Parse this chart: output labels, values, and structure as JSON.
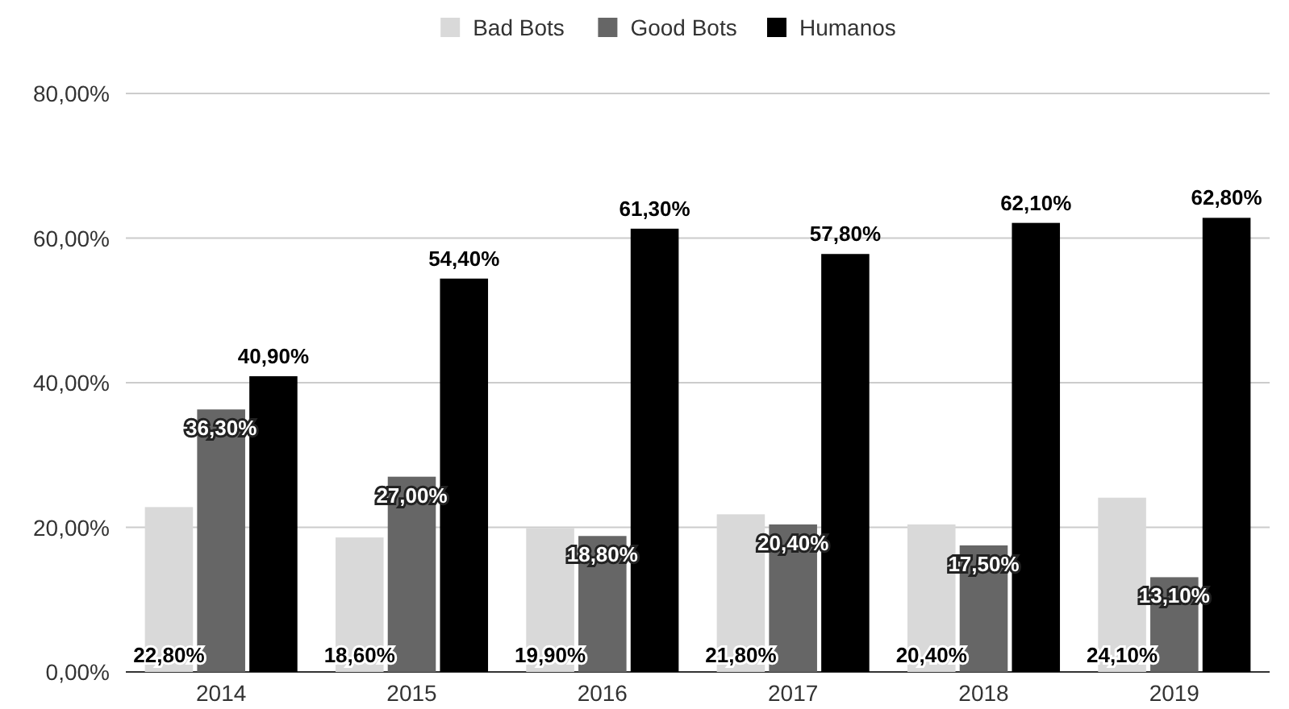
{
  "chart_data": {
    "type": "bar",
    "categories": [
      "2014",
      "2015",
      "2016",
      "2017",
      "2018",
      "2019"
    ],
    "series": [
      {
        "name": "Bad Bots",
        "color": "#d9d9d9",
        "values": [
          22.8,
          18.6,
          19.9,
          21.8,
          20.4,
          24.1
        ],
        "value_labels": [
          "22,80%",
          "18,60%",
          "19,90%",
          "21,80%",
          "20,40%",
          "24,10%"
        ]
      },
      {
        "name": "Good Bots",
        "color": "#666666",
        "values": [
          36.3,
          27.0,
          18.8,
          20.4,
          17.5,
          13.1
        ],
        "value_labels": [
          "36,30%",
          "27,00%",
          "18,80%",
          "20,40%",
          "17,50%",
          "13,10%"
        ]
      },
      {
        "name": "Humanos",
        "color": "#000000",
        "values": [
          40.9,
          54.4,
          61.3,
          57.8,
          62.1,
          62.8
        ],
        "value_labels": [
          "40,90%",
          "54,40%",
          "61,30%",
          "57,80%",
          "62,10%",
          "62,80%"
        ]
      }
    ],
    "ylim": [
      0,
      80
    ],
    "yticks": [
      {
        "value": 0,
        "label": "0,00%"
      },
      {
        "value": 20,
        "label": "20,00%"
      },
      {
        "value": 40,
        "label": "40,00%"
      },
      {
        "value": 60,
        "label": "60,00%"
      },
      {
        "value": 80,
        "label": "80,00%"
      }
    ],
    "grid": "y",
    "legend": "top"
  }
}
